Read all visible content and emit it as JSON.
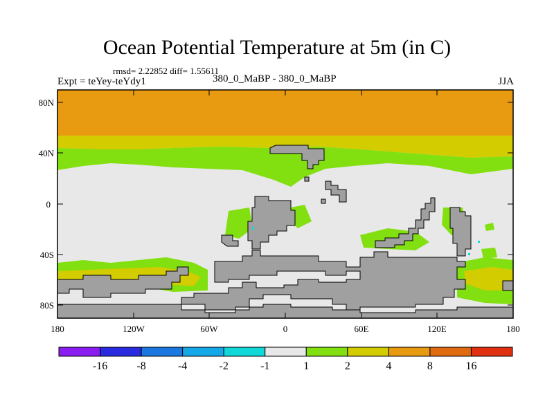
{
  "title": "Ocean Potential Temperature at 5m (in C)",
  "stats": "rmsd= 2.22852 diff= 1.55611",
  "expt_label": "Expt = teYey-teYdy1",
  "exp_names": "380_0_MaBP - 380_0_MaBP",
  "season": "JJA",
  "y_ticks": [
    "80N",
    "40N",
    "0",
    "40S",
    "80S"
  ],
  "x_ticks": [
    "180",
    "120W",
    "60W",
    "0",
    "60E",
    "120E",
    "180"
  ],
  "colorbar": {
    "labels": [
      "-16",
      "-8",
      "-4",
      "-2",
      "-1",
      "1",
      "2",
      "4",
      "8",
      "16"
    ],
    "colors": [
      "#8a1ef0",
      "#2a2ae0",
      "#1a78e0",
      "#14a8e8",
      "#10d8d8",
      "#e8e8e8",
      "#82e010",
      "#d2cc00",
      "#e89a10",
      "#e06a10",
      "#e03010"
    ]
  },
  "map_colors": {
    "land": "#a0a0a0",
    "neutral": "#e8e8e8",
    "green": "#82e010",
    "yellow": "#d2cc00",
    "orange": "#e89a10",
    "cyan": "#10d8d8"
  }
}
